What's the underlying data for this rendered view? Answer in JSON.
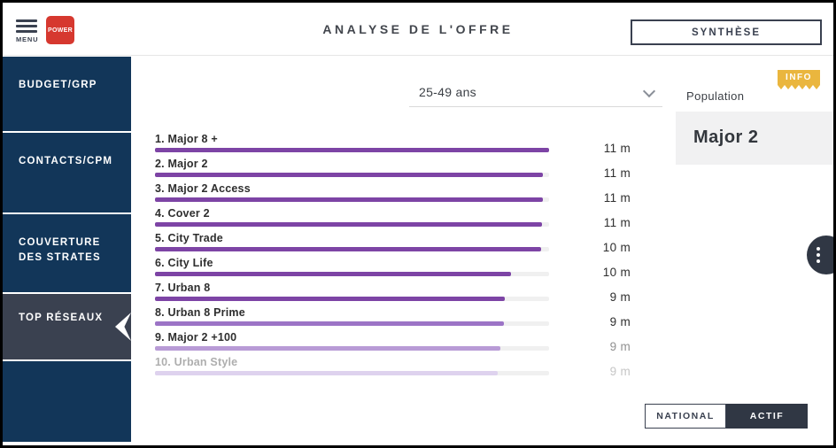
{
  "header": {
    "menu_label": "MENU",
    "logo_text": "POWER",
    "title": "ANALYSE DE L'OFFRE",
    "synthese_button": "SYNTHÈSE"
  },
  "sidebar": {
    "items": [
      {
        "label": "BUDGET/GRP",
        "active": false
      },
      {
        "label": "CONTACTS/CPM",
        "active": false
      },
      {
        "label": "COUVERTURE DES STRATES",
        "active": false
      },
      {
        "label": "TOP RÉSEAUX",
        "active": true
      }
    ]
  },
  "main": {
    "audience_dropdown": {
      "value": "25-49 ans"
    },
    "population_panel": {
      "info_badge": "INFO",
      "label": "Population",
      "selected_network": "Major 2"
    },
    "toggle": {
      "options": [
        {
          "label": "NATIONAL",
          "active": false
        },
        {
          "label": "ACTIF",
          "active": true
        }
      ]
    }
  },
  "chart_data": {
    "type": "bar",
    "orientation": "horizontal",
    "title": "Top réseaux — population 25-49 ans",
    "unit": "millions",
    "categories": [
      "1. Major 8 +",
      "2. Major 2",
      "3. Major 2 Access",
      "4. Cover 2",
      "5. City Trade",
      "6. City Life",
      "7. Urban 8",
      "8. Urban 8 Prime",
      "9. Major 2 +100",
      "10. Urban Style"
    ],
    "values": [
      11,
      11,
      11,
      11,
      10,
      10,
      9,
      9,
      9,
      9
    ],
    "xlim": [
      0,
      11
    ],
    "rows": [
      {
        "rank": 1,
        "label": "1. Major 8 +",
        "value": "11 m",
        "pct": 100,
        "color": "#7d44a5",
        "label_muted": false,
        "value_level": 0
      },
      {
        "rank": 2,
        "label": "2. Major 2",
        "value": "11 m",
        "pct": 98.4,
        "color": "#7d44a5",
        "label_muted": false,
        "value_level": 0
      },
      {
        "rank": 3,
        "label": "3. Major 2 Access",
        "value": "11 m",
        "pct": 98.4,
        "color": "#7d44a5",
        "label_muted": false,
        "value_level": 0
      },
      {
        "rank": 4,
        "label": "4. Cover 2",
        "value": "11 m",
        "pct": 98.3,
        "color": "#7d44a5",
        "label_muted": false,
        "value_level": 0
      },
      {
        "rank": 5,
        "label": "5. City Trade",
        "value": "10 m",
        "pct": 97.9,
        "color": "#7d44a5",
        "label_muted": false,
        "value_level": 0
      },
      {
        "rank": 6,
        "label": "6. City Life",
        "value": "10 m",
        "pct": 90.4,
        "color": "#7d44a5",
        "label_muted": false,
        "value_level": 0
      },
      {
        "rank": 7,
        "label": "7. Urban 8",
        "value": "9 m",
        "pct": 88.8,
        "color": "#7d44a5",
        "label_muted": false,
        "value_level": 0
      },
      {
        "rank": 8,
        "label": "8. Urban 8 Prime",
        "value": "9 m",
        "pct": 88.5,
        "color": "#9c74c6",
        "label_muted": false,
        "value_level": 0
      },
      {
        "rank": 9,
        "label": "9. Major 2 +100",
        "value": "9 m",
        "pct": 87.6,
        "color": "#b89bd6",
        "label_muted": false,
        "value_level": 1
      },
      {
        "rank": 10,
        "label": "10. Urban Style",
        "value": "9 m",
        "pct": 87.0,
        "color": "#ded2ee",
        "label_muted": true,
        "value_level": 2
      }
    ]
  },
  "colors": {
    "accent_purple": "#7d44a5",
    "navy": "#123659",
    "charcoal": "#3a4150",
    "gold": "#eab63e",
    "logo_red": "#d6382f",
    "bar_track": "#f0f0f0"
  }
}
